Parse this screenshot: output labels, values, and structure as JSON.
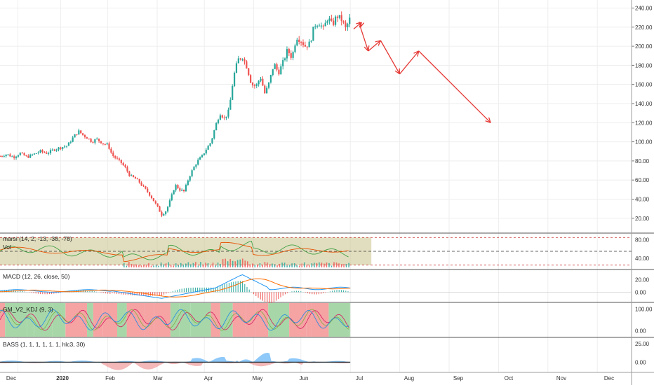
{
  "chart_data": {
    "type": "candlestick",
    "x_ticks": [
      "Dec",
      "2020",
      "Feb",
      "Mar",
      "Apr",
      "May",
      "Jun",
      "Jul",
      "Aug",
      "Sep",
      "Oct",
      "Nov",
      "Dec"
    ],
    "colors": {
      "up": "#26a69a",
      "down": "#ef5350",
      "forecast": "#e53935",
      "grid": "#eeeeee",
      "band_fill": "#c9c38a",
      "macd_line": "#2196f3",
      "signal_line": "#ff6d00",
      "gm_red": "#f5a3a3",
      "gm_green": "#a7d7a8"
    },
    "main": {
      "y_ticks": [
        "240.00",
        "220.00",
        "200.00",
        "180.00",
        "160.00",
        "140.00",
        "120.00",
        "100.00",
        "80.00",
        "60.00",
        "40.00",
        "20.00"
      ],
      "ylim": [
        14,
        244
      ],
      "close": [
        {
          "t": 0,
          "v": 85
        },
        {
          "t": 3,
          "v": 87
        },
        {
          "t": 6,
          "v": 84
        },
        {
          "t": 9,
          "v": 88
        },
        {
          "t": 12,
          "v": 84
        },
        {
          "t": 15,
          "v": 87
        },
        {
          "t": 18,
          "v": 90
        },
        {
          "t": 21,
          "v": 88
        },
        {
          "t": 24,
          "v": 92
        },
        {
          "t": 27,
          "v": 94
        },
        {
          "t": 30,
          "v": 96
        },
        {
          "t": 33,
          "v": 106
        },
        {
          "t": 35,
          "v": 111
        },
        {
          "t": 37,
          "v": 107
        },
        {
          "t": 39,
          "v": 104
        },
        {
          "t": 41,
          "v": 100
        },
        {
          "t": 43,
          "v": 103
        },
        {
          "t": 46,
          "v": 98
        },
        {
          "t": 48,
          "v": 97
        },
        {
          "t": 50,
          "v": 86
        },
        {
          "t": 52,
          "v": 82
        },
        {
          "t": 54,
          "v": 78
        },
        {
          "t": 56,
          "v": 72
        },
        {
          "t": 58,
          "v": 64
        },
        {
          "t": 60,
          "v": 62
        },
        {
          "t": 62,
          "v": 58
        },
        {
          "t": 64,
          "v": 52
        },
        {
          "t": 66,
          "v": 47
        },
        {
          "t": 68,
          "v": 40
        },
        {
          "t": 70,
          "v": 32
        },
        {
          "t": 72,
          "v": 24
        },
        {
          "t": 74,
          "v": 28
        },
        {
          "t": 76,
          "v": 40
        },
        {
          "t": 78,
          "v": 55
        },
        {
          "t": 80,
          "v": 50
        },
        {
          "t": 82,
          "v": 48
        },
        {
          "t": 84,
          "v": 62
        },
        {
          "t": 86,
          "v": 72
        },
        {
          "t": 88,
          "v": 80
        },
        {
          "t": 90,
          "v": 85
        },
        {
          "t": 92,
          "v": 93
        },
        {
          "t": 94,
          "v": 100
        },
        {
          "t": 96,
          "v": 117
        },
        {
          "t": 98,
          "v": 130
        },
        {
          "t": 100,
          "v": 124
        },
        {
          "t": 102,
          "v": 133
        },
        {
          "t": 104,
          "v": 168
        },
        {
          "t": 106,
          "v": 186
        },
        {
          "t": 108,
          "v": 189
        },
        {
          "t": 110,
          "v": 178
        },
        {
          "t": 112,
          "v": 160
        },
        {
          "t": 114,
          "v": 158
        },
        {
          "t": 116,
          "v": 168
        },
        {
          "t": 118,
          "v": 150
        },
        {
          "t": 120,
          "v": 163
        },
        {
          "t": 122,
          "v": 182
        },
        {
          "t": 124,
          "v": 172
        },
        {
          "t": 126,
          "v": 183
        },
        {
          "t": 128,
          "v": 196
        },
        {
          "t": 130,
          "v": 188
        },
        {
          "t": 132,
          "v": 210
        },
        {
          "t": 134,
          "v": 206
        },
        {
          "t": 136,
          "v": 200
        },
        {
          "t": 138,
          "v": 203
        },
        {
          "t": 140,
          "v": 222
        },
        {
          "t": 142,
          "v": 225
        },
        {
          "t": 144,
          "v": 218
        },
        {
          "t": 146,
          "v": 230
        },
        {
          "t": 148,
          "v": 222
        },
        {
          "t": 150,
          "v": 232
        },
        {
          "t": 152,
          "v": 228
        },
        {
          "t": 154,
          "v": 218
        },
        {
          "t": 156,
          "v": 230
        }
      ],
      "forecast_path": [
        {
          "t": 157.5,
          "v": 218
        },
        {
          "t": 161,
          "v": 225
        },
        {
          "t": 160.5,
          "v": 220
        },
        {
          "t": 164,
          "v": 195
        },
        {
          "t": 169.5,
          "v": 206
        },
        {
          "t": 178,
          "v": 171
        },
        {
          "t": 186.5,
          "v": 195
        },
        {
          "t": 218.5,
          "v": 120
        }
      ]
    },
    "indicators": [
      {
        "label": "marsi (14, 2, -13, -38, -78)",
        "volume_label": "Vol",
        "y_ticks": [
          "80.00",
          "40.00"
        ],
        "ylim": [
          20,
          90
        ],
        "band": [
          25,
          85
        ]
      },
      {
        "label": "MACD (12, 26, close, 50)",
        "y_ticks": [
          "20.00",
          "0.00"
        ],
        "ylim": [
          -12,
          32
        ]
      },
      {
        "label": "GM_V2_KDJ (9, 3)",
        "y_ticks": [
          "100.00",
          "0.00"
        ],
        "ylim": [
          -20,
          120
        ]
      },
      {
        "label": "BASS (1, 1, 1, 1, 1, 1, hlc3, 30)",
        "y_ticks": [
          "25.00",
          "0.00"
        ],
        "ylim": [
          -12,
          30
        ]
      }
    ]
  }
}
